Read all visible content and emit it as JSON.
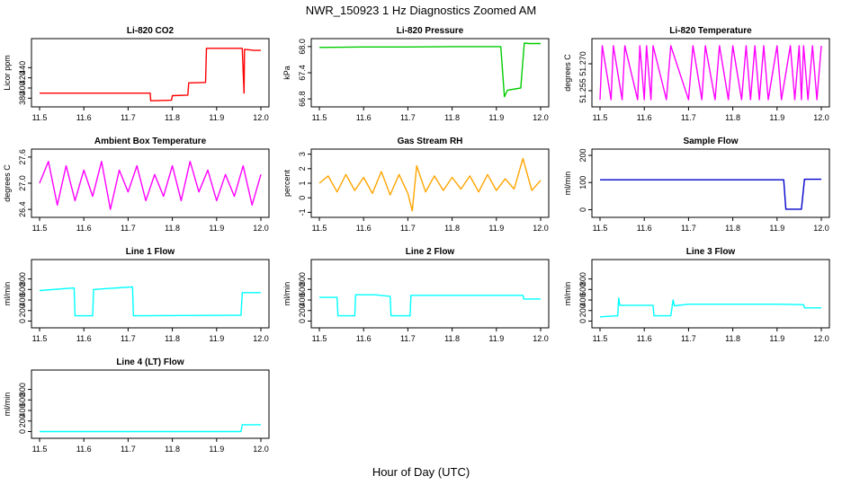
{
  "title": "NWR_150923  1 Hz Diagnostics Zoomed AM",
  "xlabel": "Hour of Day (UTC)",
  "chart_data": [
    {
      "type": "line",
      "title": "Li-820 CO2",
      "ylabel": "Licor ppm",
      "color": "#ff0000",
      "xlim": [
        11.5,
        12.0
      ],
      "ylim": [
        370,
        490
      ],
      "xticks": [
        "11.5",
        "11.6",
        "11.7",
        "11.8",
        "11.9",
        "12.0"
      ],
      "yticks": [
        "380",
        "400",
        "420",
        "440"
      ],
      "ytick_values": [
        380,
        400,
        420,
        440
      ],
      "x": [
        11.5,
        11.75,
        11.751,
        11.798,
        11.8,
        11.835,
        11.837,
        11.875,
        11.877,
        11.955,
        11.958,
        11.962,
        11.963,
        11.985,
        11.99,
        12.0
      ],
      "y": [
        390,
        390,
        375,
        376,
        385,
        386,
        410,
        411,
        478,
        478,
        478,
        390,
        476,
        474,
        474,
        474
      ]
    },
    {
      "type": "line",
      "title": "Li-820 Pressure",
      "ylabel": "kPa",
      "color": "#00cc00",
      "xlim": [
        11.5,
        12.0
      ],
      "ylim": [
        66.7,
        68.1
      ],
      "xticks": [
        "11.5",
        "11.6",
        "11.7",
        "11.8",
        "11.9",
        "12.0"
      ],
      "yticks": [
        "66.8",
        "67.4",
        "68.0"
      ],
      "ytick_values": [
        66.8,
        67.4,
        68.0
      ],
      "x": [
        11.5,
        11.6,
        11.7,
        11.8,
        11.91,
        11.918,
        11.925,
        11.955,
        11.963,
        11.975,
        12.0
      ],
      "y": [
        67.98,
        67.99,
        67.99,
        68.0,
        68.0,
        66.85,
        67.0,
        67.05,
        68.08,
        68.07,
        68.07
      ]
    },
    {
      "type": "line",
      "title": "Li-820 Temperature",
      "ylabel": "degrees C",
      "color": "#ff00ff",
      "xlim": [
        11.5,
        12.0
      ],
      "ylim": [
        51.248,
        51.282
      ],
      "xticks": [
        "11.5",
        "11.6",
        "11.7",
        "11.8",
        "11.9",
        "12.0"
      ],
      "yticks": [
        "51.255",
        "51.270"
      ],
      "ytick_values": [
        51.255,
        51.27
      ],
      "x": [
        11.5,
        11.505,
        11.525,
        11.53,
        11.55,
        11.556,
        11.585,
        11.59,
        11.6,
        11.605,
        11.615,
        11.62,
        11.65,
        11.66,
        11.7,
        11.71,
        11.73,
        11.738,
        11.76,
        11.77,
        11.79,
        11.8,
        11.82,
        11.83,
        11.84,
        11.85,
        11.86,
        11.87,
        11.88,
        11.9,
        11.91,
        11.93,
        11.94,
        11.95,
        11.955,
        11.96,
        11.97,
        11.98,
        11.99,
        12.0
      ],
      "y": [
        51.25,
        51.28,
        51.25,
        51.28,
        51.25,
        51.28,
        51.25,
        51.28,
        51.25,
        51.28,
        51.25,
        51.28,
        51.25,
        51.28,
        51.25,
        51.28,
        51.25,
        51.28,
        51.25,
        51.28,
        51.25,
        51.28,
        51.25,
        51.28,
        51.25,
        51.28,
        51.25,
        51.28,
        51.25,
        51.28,
        51.25,
        51.28,
        51.25,
        51.28,
        51.25,
        51.28,
        51.25,
        51.28,
        51.25,
        51.28
      ]
    },
    {
      "type": "line",
      "title": "Ambient Box Temperature",
      "ylabel": "degrees C",
      "color": "#ff00ff",
      "xlim": [
        11.5,
        12.0
      ],
      "ylim": [
        26.3,
        27.7
      ],
      "xticks": [
        "11.5",
        "11.6",
        "11.7",
        "11.8",
        "11.9",
        "12.0"
      ],
      "yticks": [
        "26.4",
        "27.0",
        "27.6"
      ],
      "ytick_values": [
        26.4,
        27.0,
        27.6
      ],
      "x": [
        11.5,
        11.52,
        11.54,
        11.56,
        11.58,
        11.6,
        11.62,
        11.64,
        11.66,
        11.68,
        11.7,
        11.72,
        11.74,
        11.76,
        11.78,
        11.8,
        11.82,
        11.84,
        11.86,
        11.88,
        11.9,
        11.92,
        11.94,
        11.96,
        11.98,
        12.0
      ],
      "y": [
        27.0,
        27.5,
        26.5,
        27.4,
        26.6,
        27.3,
        26.7,
        27.5,
        26.4,
        27.3,
        26.8,
        27.4,
        26.6,
        27.2,
        26.7,
        27.4,
        26.6,
        27.5,
        26.8,
        27.3,
        26.6,
        27.2,
        26.7,
        27.4,
        26.5,
        27.2
      ]
    },
    {
      "type": "line",
      "title": "Gas Stream RH",
      "ylabel": "percent",
      "color": "#ffa500",
      "xlim": [
        11.5,
        12.0
      ],
      "ylim": [
        -1.1,
        3.1
      ],
      "xticks": [
        "11.5",
        "11.6",
        "11.7",
        "11.8",
        "11.9",
        "12.0"
      ],
      "yticks": [
        "-1",
        "0",
        "1",
        "2",
        "3"
      ],
      "ytick_values": [
        -1,
        0,
        1,
        2,
        3
      ],
      "x": [
        11.5,
        11.52,
        11.54,
        11.56,
        11.58,
        11.6,
        11.62,
        11.64,
        11.66,
        11.68,
        11.7,
        11.71,
        11.72,
        11.74,
        11.76,
        11.78,
        11.8,
        11.82,
        11.84,
        11.86,
        11.88,
        11.9,
        11.92,
        11.94,
        11.96,
        11.98,
        12.0
      ],
      "y": [
        1.0,
        1.5,
        0.4,
        1.6,
        0.5,
        1.4,
        0.3,
        1.8,
        0.2,
        1.6,
        0.3,
        -0.9,
        2.2,
        0.4,
        1.5,
        0.5,
        1.4,
        0.6,
        1.5,
        0.4,
        1.6,
        0.5,
        1.3,
        0.6,
        2.7,
        0.5,
        1.2
      ]
    },
    {
      "type": "line",
      "title": "Sample Flow",
      "ylabel": "ml/min",
      "color": "#0000cc",
      "xlim": [
        11.5,
        12.0
      ],
      "ylim": [
        -15,
        210
      ],
      "xticks": [
        "11.5",
        "11.6",
        "11.7",
        "11.8",
        "11.9",
        "12.0"
      ],
      "yticks": [
        "0",
        "100",
        "200"
      ],
      "ytick_values": [
        0,
        100,
        200
      ],
      "x": [
        11.5,
        11.6,
        11.7,
        11.8,
        11.9,
        11.915,
        11.92,
        11.955,
        11.962,
        12.0
      ],
      "y": [
        110,
        110,
        110,
        110,
        110,
        110,
        2,
        2,
        112,
        112
      ]
    },
    {
      "type": "line",
      "title": "Line 1 Flow",
      "ylabel": "ml/min",
      "color": "#00ffff",
      "xlim": [
        11.5,
        12.0
      ],
      "ylim": [
        -60,
        1100
      ],
      "xticks": [
        "11.5",
        "11.6",
        "11.7",
        "11.8",
        "11.9",
        "12.0"
      ],
      "yticks": [
        "0",
        "200",
        "400",
        "600",
        "800"
      ],
      "ytick_values": [
        0,
        200,
        400,
        600,
        800
      ],
      "x": [
        11.5,
        11.578,
        11.58,
        11.62,
        11.622,
        11.71,
        11.712,
        11.955,
        11.958,
        12.0
      ],
      "y": [
        580,
        630,
        100,
        100,
        600,
        650,
        100,
        110,
        540,
        540
      ]
    },
    {
      "type": "line",
      "title": "Line 2 Flow",
      "ylabel": "ml/min",
      "color": "#00ffff",
      "xlim": [
        11.5,
        12.0
      ],
      "ylim": [
        -60,
        1100
      ],
      "xticks": [
        "11.5",
        "11.6",
        "11.7",
        "11.8",
        "11.9",
        "12.0"
      ],
      "yticks": [
        "0",
        "200",
        "400",
        "600",
        "800"
      ],
      "ytick_values": [
        0,
        200,
        400,
        600,
        800
      ],
      "x": [
        11.5,
        11.54,
        11.542,
        11.58,
        11.582,
        11.625,
        11.66,
        11.662,
        11.705,
        11.707,
        11.96,
        11.962,
        12.0
      ],
      "y": [
        450,
        450,
        100,
        100,
        500,
        500,
        470,
        100,
        100,
        490,
        490,
        420,
        420
      ]
    },
    {
      "type": "line",
      "title": "Line 3 Flow",
      "ylabel": "ml/min",
      "color": "#00ffff",
      "xlim": [
        11.5,
        12.0
      ],
      "ylim": [
        -60,
        1100
      ],
      "xticks": [
        "11.5",
        "11.6",
        "11.7",
        "11.8",
        "11.9",
        "12.0"
      ],
      "yticks": [
        "0",
        "200",
        "400",
        "600",
        "800"
      ],
      "ytick_values": [
        0,
        200,
        400,
        600,
        800
      ],
      "x": [
        11.5,
        11.54,
        11.542,
        11.545,
        11.58,
        11.62,
        11.622,
        11.66,
        11.665,
        11.668,
        11.7,
        11.8,
        11.9,
        11.96,
        11.962,
        12.0
      ],
      "y": [
        80,
        100,
        440,
        300,
        300,
        300,
        100,
        100,
        400,
        290,
        320,
        320,
        320,
        310,
        250,
        250
      ]
    },
    {
      "type": "line",
      "title": "Line 4 (LT) Flow",
      "ylabel": "ml/min",
      "color": "#00ffff",
      "xlim": [
        11.5,
        12.0
      ],
      "ylim": [
        -60,
        1100
      ],
      "xticks": [
        "11.5",
        "11.6",
        "11.7",
        "11.8",
        "11.9",
        "12.0"
      ],
      "yticks": [
        "0",
        "200",
        "400",
        "600",
        "800"
      ],
      "ytick_values": [
        0,
        200,
        400,
        600,
        800
      ],
      "x": [
        11.5,
        11.6,
        11.7,
        11.8,
        11.9,
        11.955,
        11.958,
        12.0
      ],
      "y": [
        0,
        0,
        0,
        0,
        0,
        0,
        130,
        130
      ]
    }
  ]
}
